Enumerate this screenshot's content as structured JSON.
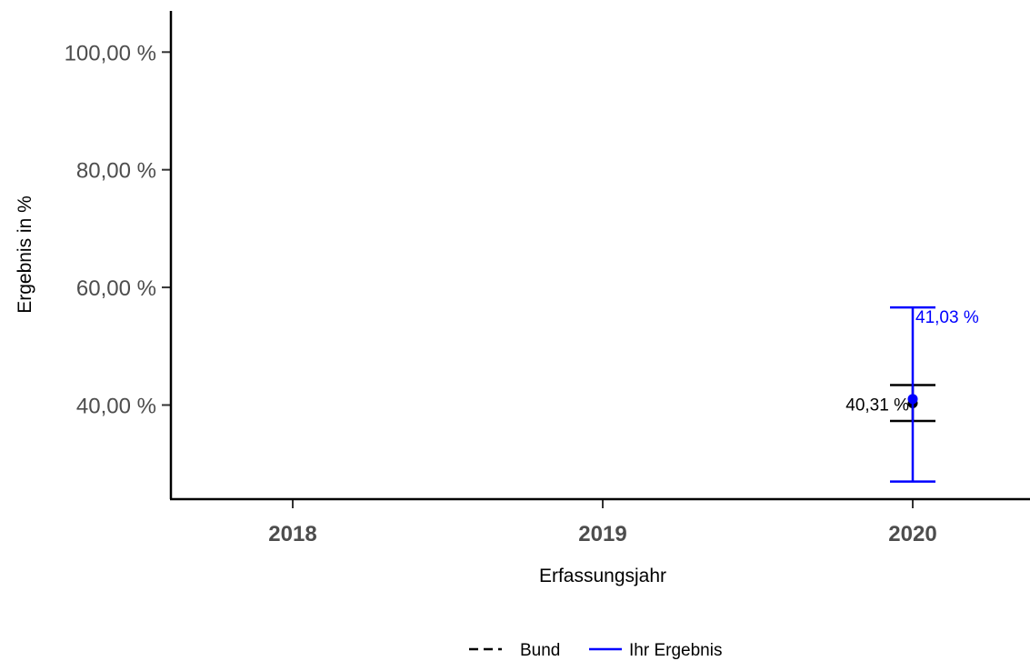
{
  "chart_data": {
    "type": "scatter",
    "title": "",
    "xlabel": "Erfassungsjahr",
    "ylabel": "Ergebnis in %",
    "categories": [
      "2018",
      "2019",
      "2020"
    ],
    "ylim": [
      24,
      107
    ],
    "y_ticks": [
      {
        "value": 40,
        "label": "40,00 %"
      },
      {
        "value": 60,
        "label": "60,00 %"
      },
      {
        "value": 80,
        "label": "80,00 %"
      },
      {
        "value": 100,
        "label": "100,00 %"
      }
    ],
    "grid": false,
    "legend_position": "bottom",
    "series": [
      {
        "name": "Bund",
        "color": "#000000",
        "line_style": "dashed",
        "points": [
          {
            "x": "2020",
            "y": 40.31,
            "lower": 37.3,
            "upper": 43.4,
            "label": "40,31 %"
          }
        ]
      },
      {
        "name": "Ihr Ergebnis",
        "color": "#0000ff",
        "line_style": "solid",
        "points": [
          {
            "x": "2020",
            "y": 41.03,
            "lower": 27.0,
            "upper": 56.6,
            "label": "41,03 %"
          }
        ]
      }
    ]
  }
}
